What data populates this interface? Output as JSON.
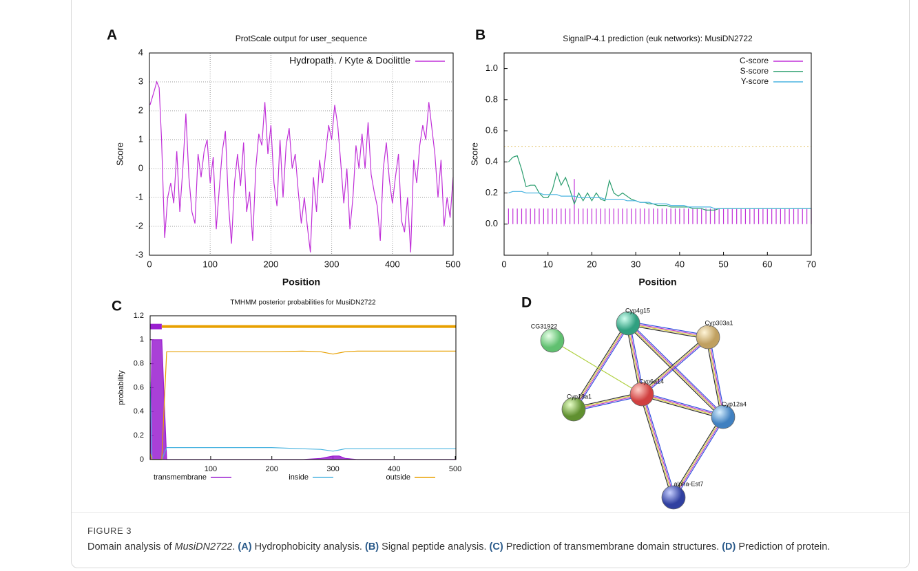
{
  "chart_data": [
    {
      "type": "line",
      "panel": "A",
      "title": "ProtScale output for user_sequence",
      "x_label": "Position",
      "y_label": "Score",
      "xlim": [
        0,
        500
      ],
      "ylim": [
        -3,
        4
      ],
      "xticks": [
        0,
        100,
        200,
        300,
        400,
        500
      ],
      "yticks": [
        -3,
        -2,
        -1,
        0,
        1,
        2,
        3,
        4
      ],
      "grid": true,
      "legend": "top-right",
      "x": [
        1,
        8,
        12,
        16,
        20,
        25,
        30,
        35,
        40,
        45,
        50,
        55,
        60,
        65,
        70,
        75,
        80,
        85,
        90,
        95,
        100,
        105,
        110,
        115,
        120,
        125,
        130,
        135,
        140,
        145,
        150,
        155,
        160,
        165,
        170,
        175,
        180,
        185,
        190,
        195,
        200,
        205,
        210,
        215,
        220,
        225,
        230,
        235,
        240,
        245,
        250,
        255,
        260,
        265,
        270,
        275,
        280,
        285,
        290,
        295,
        300,
        305,
        310,
        315,
        320,
        325,
        330,
        335,
        340,
        345,
        350,
        355,
        360,
        365,
        370,
        375,
        380,
        385,
        390,
        395,
        400,
        405,
        410,
        415,
        420,
        425,
        430,
        435,
        440,
        445,
        450,
        455,
        460,
        465,
        470,
        475,
        480,
        485,
        490,
        495,
        500
      ],
      "series": [
        {
          "name": "Hydropath. / Kyte & Doolittle",
          "color": "#c030d8",
          "style": "line",
          "values": [
            2.2,
            2.7,
            3.0,
            2.8,
            1.0,
            -2.4,
            -1.0,
            -0.5,
            -1.2,
            0.6,
            -1.5,
            0.0,
            1.9,
            -0.3,
            -1.5,
            -1.9,
            0.5,
            -0.3,
            0.6,
            1.0,
            -0.5,
            0.4,
            -2.1,
            -0.7,
            0.6,
            1.3,
            -1.2,
            -2.6,
            -0.5,
            0.5,
            -0.6,
            0.9,
            -1.5,
            -0.8,
            -2.5,
            0.0,
            1.2,
            0.8,
            2.3,
            0.5,
            1.5,
            -0.5,
            -1.3,
            1.0,
            -1.0,
            0.8,
            1.4,
            0.0,
            0.5,
            -0.8,
            -1.9,
            -1.0,
            -2.0,
            -2.9,
            -0.3,
            -1.5,
            0.3,
            -0.5,
            0.5,
            1.5,
            1.0,
            2.2,
            1.5,
            0.2,
            -1.2,
            0.0,
            -2.1,
            -1.0,
            0.8,
            0.0,
            1.2,
            0.0,
            1.6,
            -0.2,
            -0.8,
            -1.3,
            -2.5,
            0.0,
            0.9,
            -0.4,
            -1.2,
            -0.3,
            0.5,
            -1.8,
            -2.2,
            -1.0,
            -2.9,
            0.3,
            -0.5,
            0.8,
            1.5,
            1.0,
            2.3,
            1.4,
            0.5,
            -1.0,
            0.3,
            -2.0,
            -1.0,
            -1.7,
            -0.3
          ]
        }
      ]
    },
    {
      "type": "line",
      "panel": "B",
      "title": "SignalP-4.1 prediction (euk networks): MusiDN2722",
      "x_label": "Position",
      "y_label": "Score",
      "xlim": [
        0,
        70
      ],
      "ylim": [
        -0.2,
        1.1
      ],
      "xticks": [
        0,
        10,
        20,
        30,
        40,
        50,
        60,
        70
      ],
      "yticks": [
        {
          "value": 0,
          "label": "0.0"
        },
        0.2,
        0.4,
        0.6,
        0.8,
        {
          "value": 1,
          "label": "1.0"
        }
      ],
      "grid": false,
      "legend": "top-right",
      "threshold": 0.5,
      "x": [
        1,
        2,
        3,
        4,
        5,
        6,
        7,
        8,
        9,
        10,
        11,
        12,
        13,
        14,
        15,
        16,
        17,
        18,
        19,
        20,
        21,
        22,
        23,
        24,
        25,
        26,
        27,
        28,
        29,
        30,
        31,
        32,
        33,
        34,
        35,
        36,
        37,
        38,
        39,
        40,
        41,
        42,
        43,
        44,
        45,
        46,
        47,
        48,
        49,
        50,
        51,
        52,
        53,
        54,
        55,
        56,
        57,
        58,
        59,
        60,
        61,
        62,
        63,
        64,
        65,
        66,
        67,
        68,
        69,
        70
      ],
      "series": [
        {
          "name": "C-score",
          "color": "#c030d8",
          "style": "impulse",
          "values": [
            0.1,
            0.1,
            0.1,
            0.1,
            0.1,
            0.1,
            0.1,
            0.1,
            0.1,
            0.1,
            0.1,
            0.1,
            0.1,
            0.1,
            0.1,
            0.29,
            0.1,
            0.1,
            0.1,
            0.1,
            0.1,
            0.1,
            0.1,
            0.1,
            0.1,
            0.1,
            0.1,
            0.1,
            0.1,
            0.1,
            0.1,
            0.1,
            0.1,
            0.1,
            0.1,
            0.1,
            0.1,
            0.1,
            0.1,
            0.1,
            0.1,
            0.1,
            0.1,
            0.1,
            0.1,
            0.1,
            0.1,
            0.1,
            0.1,
            0.1,
            0.1,
            0.1,
            0.1,
            0.1,
            0.1,
            0.1,
            0.1,
            0.1,
            0.1,
            0.1,
            0.1,
            0.1,
            0.1,
            0.1,
            0.1,
            0.1,
            0.1,
            0.1,
            0.1,
            0.1
          ]
        },
        {
          "name": "S-score",
          "color": "#2a9d6e",
          "style": "line",
          "values": [
            0.4,
            0.43,
            0.44,
            0.35,
            0.24,
            0.25,
            0.25,
            0.2,
            0.17,
            0.17,
            0.22,
            0.33,
            0.25,
            0.3,
            0.22,
            0.13,
            0.2,
            0.15,
            0.2,
            0.15,
            0.2,
            0.16,
            0.15,
            0.28,
            0.2,
            0.18,
            0.2,
            0.18,
            0.16,
            0.15,
            0.14,
            0.14,
            0.13,
            0.13,
            0.12,
            0.12,
            0.12,
            0.11,
            0.11,
            0.11,
            0.11,
            0.11,
            0.1,
            0.1,
            0.1,
            0.09,
            0.09,
            0.09,
            0.1,
            0.1,
            0.1,
            0.1,
            0.1,
            0.1,
            0.1,
            0.1,
            0.1,
            0.1,
            0.1,
            0.1,
            0.1,
            0.1,
            0.1,
            0.1,
            0.1,
            0.1,
            0.1,
            0.1,
            0.1,
            0.1
          ]
        },
        {
          "name": "Y-score",
          "color": "#4ab4e0",
          "style": "line",
          "values": [
            0.2,
            0.21,
            0.21,
            0.21,
            0.2,
            0.2,
            0.2,
            0.2,
            0.19,
            0.19,
            0.19,
            0.19,
            0.18,
            0.18,
            0.18,
            0.18,
            0.17,
            0.17,
            0.17,
            0.17,
            0.17,
            0.17,
            0.16,
            0.16,
            0.16,
            0.16,
            0.16,
            0.15,
            0.15,
            0.15,
            0.14,
            0.14,
            0.14,
            0.13,
            0.13,
            0.13,
            0.13,
            0.12,
            0.12,
            0.12,
            0.12,
            0.11,
            0.11,
            0.11,
            0.11,
            0.11,
            0.11,
            0.1,
            0.1,
            0.1,
            0.1,
            0.1,
            0.1,
            0.1,
            0.1,
            0.1,
            0.1,
            0.1,
            0.1,
            0.1,
            0.1,
            0.1,
            0.1,
            0.1,
            0.1,
            0.1,
            0.1,
            0.1,
            0.1,
            0.1
          ]
        }
      ]
    },
    {
      "type": "line",
      "panel": "C",
      "title": "TMHMM posterior probabilities for MusiDN2722",
      "y_label": "probability",
      "xlim": [
        1,
        501
      ],
      "ylim": [
        0,
        1.2
      ],
      "xticks": [
        100,
        200,
        300,
        400,
        500
      ],
      "yticks": [
        0,
        0.2,
        0.4,
        0.6,
        0.8,
        1,
        1.2
      ],
      "grid": false,
      "legend": "bottom",
      "topology": [
        {
          "start": 1,
          "end": 20,
          "color": "#9a1fd0"
        },
        {
          "start": 20,
          "end": 501,
          "color": "#e8a000"
        }
      ],
      "x": [
        1,
        4,
        8,
        12,
        16,
        20,
        24,
        28,
        40,
        100,
        200,
        250,
        280,
        300,
        310,
        320,
        340,
        400,
        450,
        501
      ],
      "series": [
        {
          "name": "transmembrane",
          "color": "#9a1fd0",
          "style": "area",
          "values": [
            0,
            1,
            1,
            1,
            1,
            1,
            0.5,
            0,
            0,
            0,
            0,
            0,
            0.01,
            0.03,
            0.03,
            0.01,
            0,
            0,
            0,
            0
          ]
        },
        {
          "name": "inside",
          "color": "#4ab4e0",
          "style": "line",
          "values": [
            0.65,
            0,
            0,
            0,
            0,
            0,
            0.05,
            0.1,
            0.1,
            0.1,
            0.1,
            0.09,
            0.085,
            0.07,
            0.08,
            0.09,
            0.09,
            0.09,
            0.09,
            0.09
          ]
        },
        {
          "name": "outside",
          "color": "#e8a000",
          "style": "line",
          "values": [
            0.05,
            0,
            0,
            0,
            0,
            0,
            0.45,
            0.9,
            0.9,
            0.9,
            0.9,
            0.905,
            0.9,
            0.88,
            0.89,
            0.9,
            0.905,
            0.905,
            0.905,
            0.905
          ]
        }
      ]
    }
  ],
  "network": {
    "panel": "D",
    "nodes": [
      "CG31922",
      "Cyp4g15",
      "Cyp303a1",
      "Cyp6a14",
      "Cyp18a1",
      "Cyp12a4",
      "alpha-Est7"
    ],
    "edges": [
      [
        "Cyp4g15",
        "Cyp303a1"
      ],
      [
        "Cyp4g15",
        "Cyp6a14"
      ],
      [
        "Cyp4g15",
        "Cyp18a1"
      ],
      [
        "Cyp4g15",
        "Cyp12a4"
      ],
      [
        "Cyp303a1",
        "Cyp6a14"
      ],
      [
        "Cyp303a1",
        "Cyp12a4"
      ],
      [
        "CG31922",
        "Cyp6a14"
      ],
      [
        "Cyp6a14",
        "Cyp18a1"
      ],
      [
        "Cyp6a14",
        "Cyp12a4"
      ],
      [
        "Cyp6a14",
        "alpha-Est7"
      ],
      [
        "Cyp12a4",
        "alpha-Est7"
      ]
    ]
  },
  "caption": {
    "label": "FIGURE 3",
    "parts": [
      "Domain analysis of ",
      "MusiDN2722",
      ". ",
      "(A)",
      " Hydrophobicity analysis. ",
      "(B)",
      " Signal peptide analysis. ",
      "(C)",
      " Prediction of transmembrane domain structures. ",
      "(D)",
      " Prediction of protein."
    ]
  }
}
